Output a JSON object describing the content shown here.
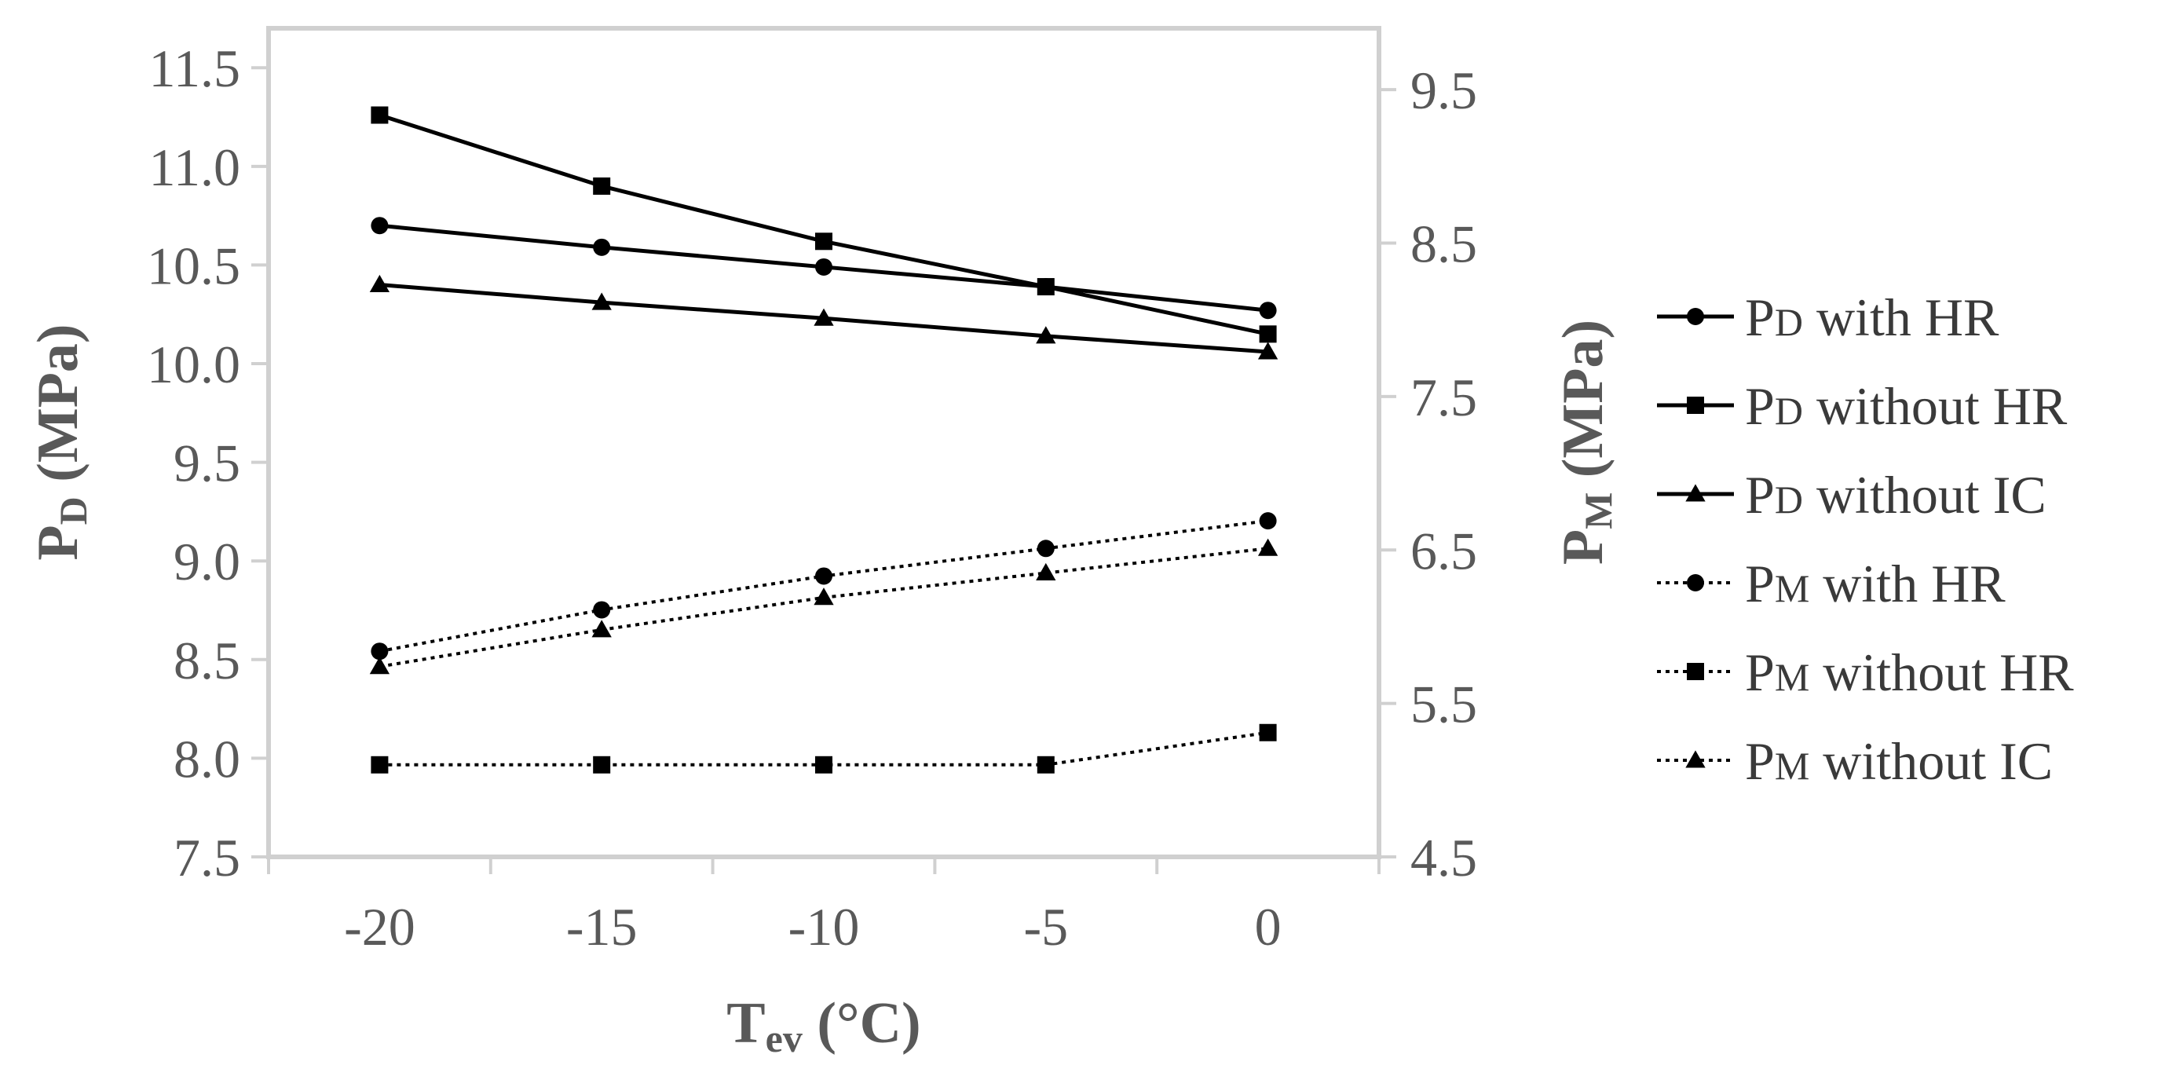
{
  "chart_data": {
    "type": "line",
    "xlabel": {
      "main": "T",
      "sub": "ev",
      "unit": " (°C)"
    },
    "ylabel_left": {
      "main": "P",
      "sub": "D",
      "unit": " (MPa)"
    },
    "ylabel_right": {
      "main": "P",
      "sub": "M",
      "unit": " (MPa)"
    },
    "x": [
      -20,
      -15,
      -10,
      -5,
      0
    ],
    "xlim": [
      -22.5,
      2.5
    ],
    "x_ticks": [
      "-20",
      "-15",
      "-10",
      "-5",
      "0"
    ],
    "ylim_left": [
      7.5,
      11.7
    ],
    "y_ticks_left": [
      "7.5",
      "8.0",
      "8.5",
      "9.0",
      "9.5",
      "10.0",
      "10.5",
      "11.0",
      "11.5"
    ],
    "ylim_right": [
      4.5,
      9.9
    ],
    "y_ticks_right": [
      "4.5",
      "5.5",
      "6.5",
      "7.5",
      "8.5",
      "9.5"
    ],
    "grid": false,
    "legend_position": "right",
    "series": [
      {
        "name_main": "P",
        "name_sub": "D",
        "name_rest": " with HR",
        "axis": "left",
        "marker": "circle",
        "style": "solid",
        "values": [
          10.7,
          10.59,
          10.49,
          10.39,
          10.27
        ]
      },
      {
        "name_main": "P",
        "name_sub": "D",
        "name_rest": " without HR",
        "axis": "left",
        "marker": "square",
        "style": "solid",
        "values": [
          11.26,
          10.9,
          10.62,
          10.39,
          10.15
        ]
      },
      {
        "name_main": "P",
        "name_sub": "D",
        "name_rest": " without IC",
        "axis": "left",
        "marker": "triangle",
        "style": "solid",
        "values": [
          10.4,
          10.31,
          10.23,
          10.14,
          10.06
        ]
      },
      {
        "name_main": "P",
        "name_sub": "M",
        "name_rest": " with HR",
        "axis": "right",
        "marker": "circle",
        "style": "dotted",
        "values": [
          5.84,
          6.11,
          6.33,
          6.51,
          6.69
        ]
      },
      {
        "name_main": "P",
        "name_sub": "M",
        "name_rest": " without HR",
        "axis": "right",
        "marker": "square",
        "style": "dotted",
        "values": [
          5.1,
          5.1,
          5.1,
          5.1,
          5.31
        ]
      },
      {
        "name_main": "P",
        "name_sub": "M",
        "name_rest": " without IC",
        "axis": "right",
        "marker": "triangle",
        "style": "dotted",
        "values": [
          5.74,
          5.98,
          6.19,
          6.35,
          6.51
        ]
      }
    ]
  }
}
